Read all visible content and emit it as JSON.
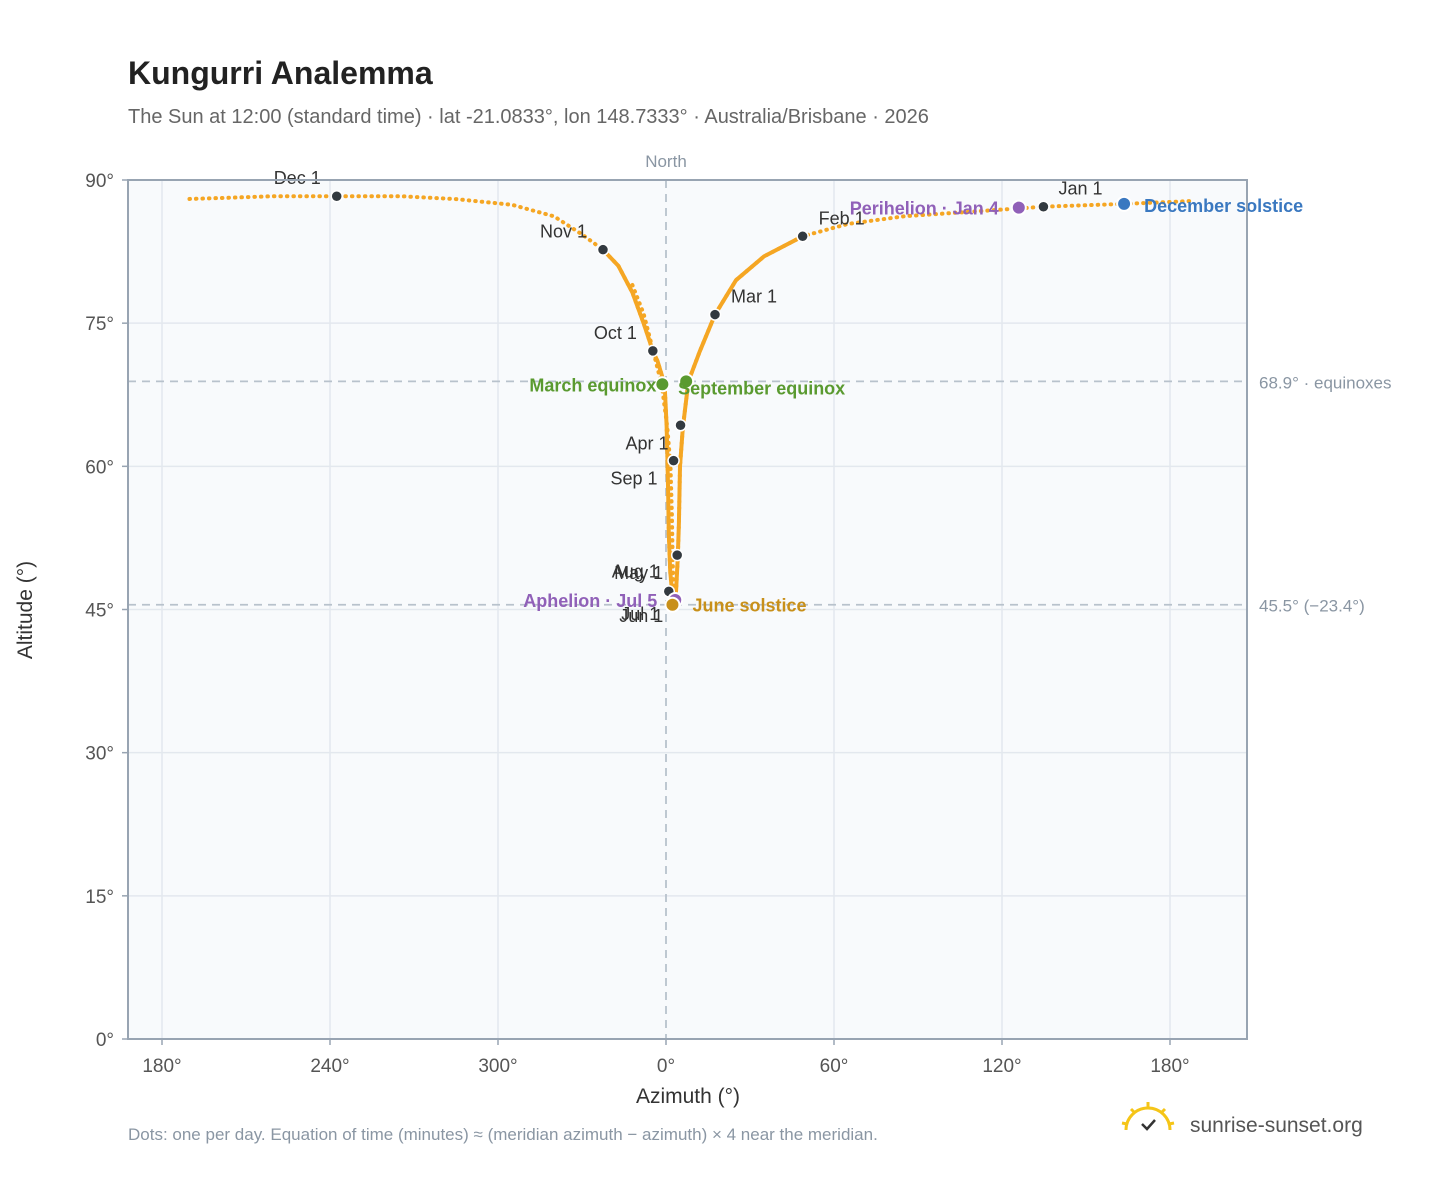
{
  "title": "Kungurri Analemma",
  "subtitle": "The Sun at 12:00 (standard time) · lat -21.0833°, lon 148.7333° · Australia/Brisbane · 2026",
  "footnote": "Dots: one per day. Equation of time (minutes) ≈ (meridian azimuth − azimuth) × 4 near the meridian.",
  "brand": "sunrise-sunset.org",
  "north_label": "North",
  "colors": {
    "curve": "#f5a623",
    "month_dot": "#333a40",
    "equinox": "#5a9a30",
    "solstice_june": "#c8901a",
    "solstice_december": "#3a78c0",
    "apsis": "#9060b8",
    "reference_line": "#b8c2cc",
    "plot_background": "#f8fafc",
    "grid": "#e3e8ee",
    "frame": "#98a4b2"
  },
  "chart_data": {
    "type": "scatter",
    "title": "Kungurri Analemma",
    "xlabel": "Azimuth (°)",
    "ylabel": "Altitude (°)",
    "xlim": [
      170,
      200
    ],
    "ylim": [
      0,
      90
    ],
    "x_axis_note": "azimuth wraps at 360: values above 360 continue past 0°",
    "x_ticks": [
      180,
      240,
      300,
      360,
      420,
      480,
      540
    ],
    "x_tick_labels": [
      "180°",
      "240°",
      "300°",
      "0°",
      "60°",
      "120°",
      "180°"
    ],
    "y_ticks": [
      0,
      15,
      30,
      45,
      60,
      75,
      90
    ],
    "y_tick_labels": [
      "0°",
      "15°",
      "30°",
      "45°",
      "60°",
      "75°",
      "90°"
    ],
    "grid": true,
    "series": [
      {
        "name": "",
        "points": [
          [
            367.3,
            87.3
          ],
          [
            480.4,
            86.7
          ],
          [
            490.3,
            86.6
          ],
          [
            495.4,
            86.5
          ],
          [
            509.8,
            86.8
          ],
          [
            522.2,
            87.3
          ],
          [
            535.4,
            87.7
          ],
          [
            548.0,
            87.9
          ],
          [
            440.0,
            85.6
          ],
          [
            410.4,
            83.8
          ],
          [
            392.6,
            81.2
          ],
          [
            377.2,
            75.9
          ],
          [
            368.9,
            69.9
          ],
          [
            365.0,
            64.9
          ],
          [
            363.2,
            60.3
          ],
          [
            362.5,
            55.2
          ],
          [
            362.5,
            51.8
          ],
          [
            362.5,
            48.6
          ],
          [
            362.6,
            46.2
          ],
          [
            362.9,
            45.6
          ],
          [
            363.0,
            45.4
          ],
          [
            363.2,
            45.6
          ],
          [
            363.3,
            46.6
          ],
          [
            363.1,
            48.5
          ],
          [
            362.4,
            51.0
          ],
          [
            361.5,
            53.8
          ],
          [
            360.8,
            57.0
          ],
          [
            360.5,
            60.9
          ],
          [
            360.0,
            64.5
          ],
          [
            359.2,
            68.5
          ],
          [
            356.0,
            73.0
          ],
          [
            349.1,
            78.2
          ],
          [
            339.3,
            82.7
          ],
          [
            321.5,
            86.0
          ],
          [
            295.4,
            87.8
          ],
          [
            250.0,
            88.4
          ],
          [
            210.0,
            88.3
          ],
          [
            177.0,
            87.9
          ],
          [
            230.0,
            88.4
          ],
          [
            330.0,
            84.3
          ]
        ]
      }
    ],
    "month_markers": [
      {
        "label": "Jan 1",
        "x": 494.8,
        "y": 87.2
      },
      {
        "label": "Feb 1",
        "x": 408.8,
        "y": 84.1
      },
      {
        "label": "Mar 1",
        "x": 377.5,
        "y": 75.9
      },
      {
        "label": "Apr 1",
        "x": 365.2,
        "y": 64.3
      },
      {
        "label": "May 1",
        "x": 364.0,
        "y": 50.7
      },
      {
        "label": "Jun 1",
        "x": 362.6,
        "y": 45.8
      },
      {
        "label": "Jul 1",
        "x": 363.3,
        "y": 46.0
      },
      {
        "label": "Aug 1",
        "x": 361.0,
        "y": 46.9
      },
      {
        "label": "Sep 1",
        "x": 362.7,
        "y": 60.6
      },
      {
        "label": "Oct 1",
        "x": 355.3,
        "y": 72.1
      },
      {
        "label": "Nov 1",
        "x": 337.5,
        "y": 82.7
      },
      {
        "label": "Dec 1",
        "x": 242.4,
        "y": 88.3
      }
    ],
    "events": [
      {
        "label": "December solstice",
        "x": 523.6,
        "y": 87.5,
        "color": "#3a78c0"
      },
      {
        "label": "Perihelion · Jan 4",
        "x": 486.0,
        "y": 87.1,
        "color": "#9060b8"
      },
      {
        "label": "March equinox",
        "x": 358.7,
        "y": 68.6,
        "color": "#5a9a30"
      },
      {
        "label": "September equinox",
        "x": 367.2,
        "y": 68.9,
        "color": "#5a9a30"
      },
      {
        "label": "Aphelion · Jul 5",
        "x": 363.3,
        "y": 46.0,
        "color": "#9060b8"
      },
      {
        "label": "June solstice",
        "x": 362.3,
        "y": 45.5,
        "color": "#c8901a"
      }
    ],
    "reference_lines": [
      {
        "label": "68.9° · equinoxes",
        "y": 68.9
      },
      {
        "label": "45.5° (−23.4°)",
        "y": 45.5
      }
    ],
    "meridian_x": 360
  }
}
